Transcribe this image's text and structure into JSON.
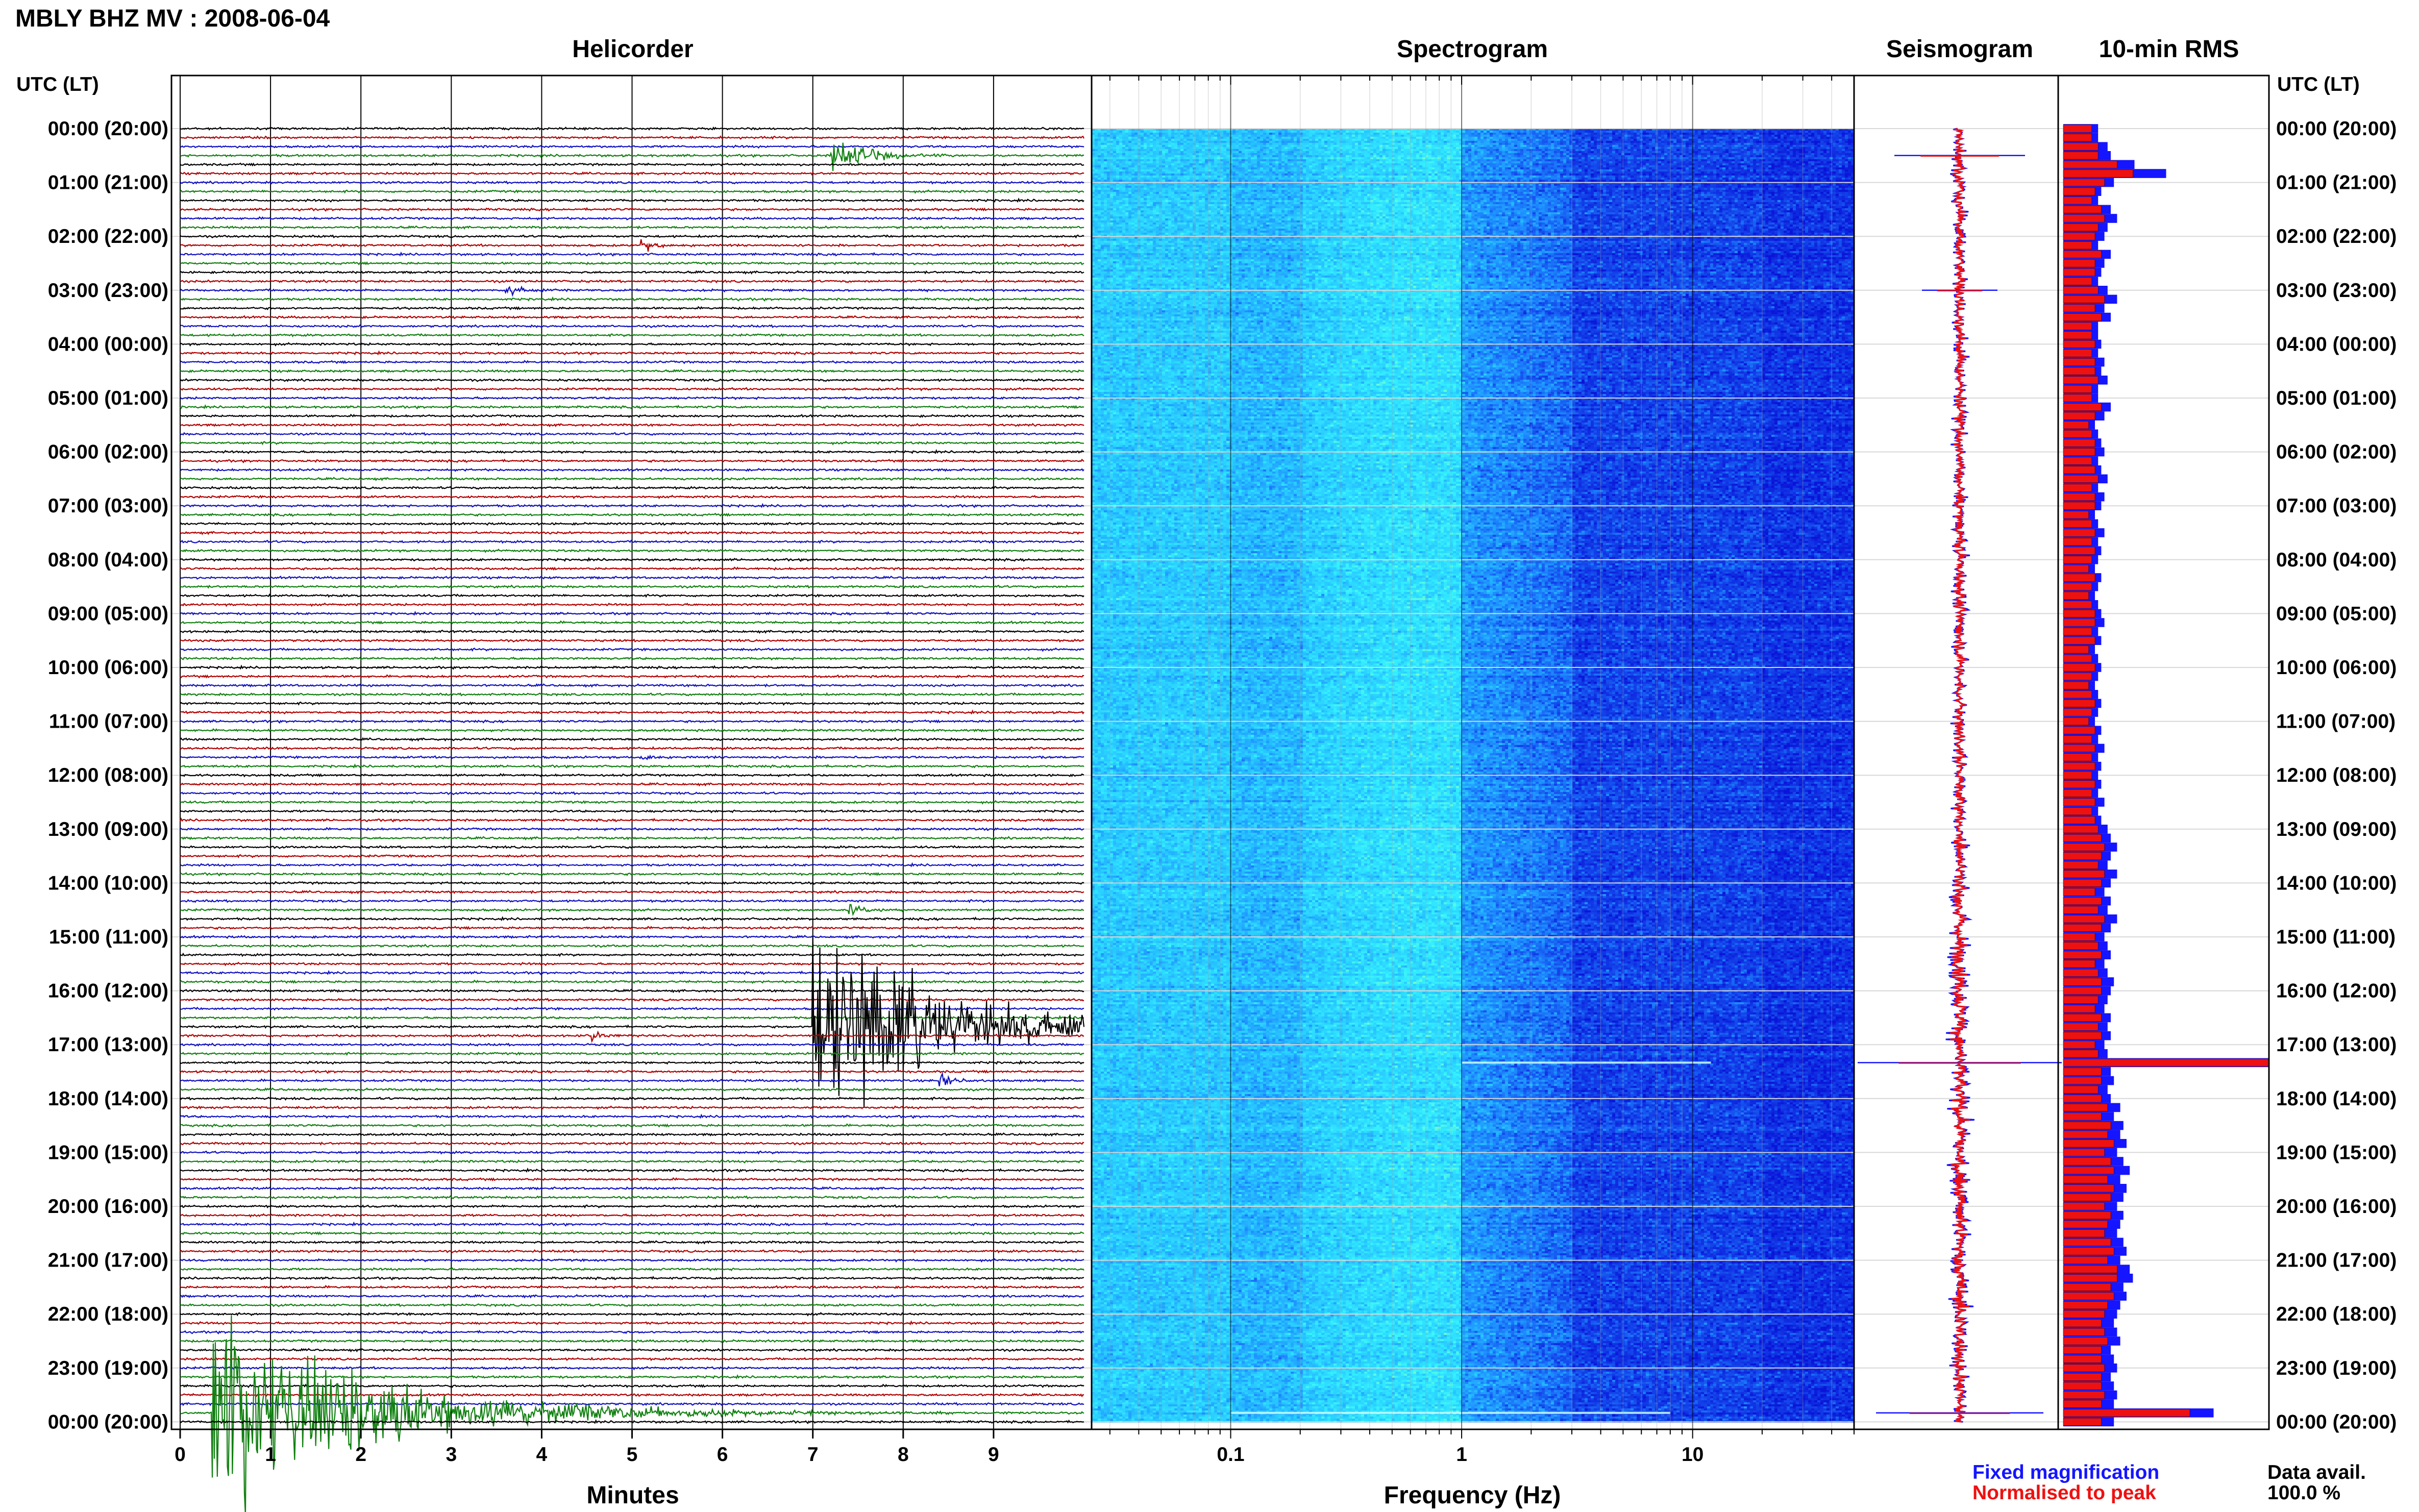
{
  "title": "MBLY BHZ MV : 2008-06-04",
  "colors": {
    "trace_cycle": [
      "#000000",
      "#b00000",
      "#1010c0",
      "#108010"
    ],
    "fixed_magnification": "#1515ff",
    "normalised_to_peak": "#ee1111",
    "spectrogram_dark": "#0a14d8",
    "spectrogram_mid": "#1e90ff",
    "spectrogram_light": "#34f0ff"
  },
  "chart_data": [
    {
      "type": "line",
      "name": "helicorder",
      "title": "Helicorder",
      "ylabel": "UTC (LT)",
      "xlabel": "Minutes",
      "x_ticks": [
        "0",
        "1",
        "2",
        "3",
        "4",
        "5",
        "6",
        "7",
        "8",
        "9"
      ],
      "xlim": [
        0,
        10
      ],
      "row_interval_minutes": 10,
      "rows": 145,
      "y_ticks": [
        "00:00 (20:00)",
        "01:00 (21:00)",
        "02:00 (22:00)",
        "03:00 (23:00)",
        "04:00 (00:00)",
        "05:00 (01:00)",
        "06:00 (02:00)",
        "07:00 (03:00)",
        "08:00 (04:00)",
        "09:00 (05:00)",
        "10:00 (06:00)",
        "11:00 (07:00)",
        "12:00 (08:00)",
        "13:00 (09:00)",
        "14:00 (10:00)",
        "15:00 (11:00)",
        "16:00 (12:00)",
        "17:00 (13:00)",
        "18:00 (14:00)",
        "19:00 (15:00)",
        "20:00 (16:00)",
        "21:00 (17:00)",
        "22:00 (18:00)",
        "23:00 (19:00)",
        "00:00 (20:00)"
      ],
      "events": [
        {
          "row": 3,
          "minute": 7.2,
          "amplitude": 1.6,
          "decay": 0.4
        },
        {
          "row": 13,
          "minute": 5.1,
          "amplitude": 0.7,
          "decay": 0.15
        },
        {
          "row": 18,
          "minute": 3.6,
          "amplitude": 0.8,
          "decay": 0.15
        },
        {
          "row": 70,
          "minute": 5.1,
          "amplitude": 0.4,
          "decay": 0.15
        },
        {
          "row": 87,
          "minute": 7.4,
          "amplitude": 0.6,
          "decay": 0.2
        },
        {
          "row": 100,
          "minute": 7.0,
          "amplitude": 10,
          "decay": 1.2
        },
        {
          "row": 101,
          "minute": 4.5,
          "amplitude": 0.6,
          "decay": 0.15
        },
        {
          "row": 106,
          "minute": 8.4,
          "amplitude": 0.8,
          "decay": 0.15
        },
        {
          "row": 143,
          "minute": 0.35,
          "amplitude": 9,
          "decay": 1.6
        }
      ]
    },
    {
      "type": "heatmap",
      "name": "spectrogram",
      "title": "Spectrogram",
      "xlabel": "Frequency (Hz)",
      "x_scale": "log",
      "xlim": [
        0.025,
        50
      ],
      "x_ticks": [
        "0.1",
        "1",
        "10"
      ],
      "peak_band_hz": [
        0.2,
        1.0
      ],
      "quiet_band_hz": [
        2,
        20
      ],
      "bright_lines": [
        {
          "row": 104,
          "from_hz": 1,
          "to_hz": 12
        },
        {
          "row": 143,
          "from_hz": 0.1,
          "to_hz": 8
        }
      ]
    },
    {
      "type": "line",
      "name": "seismogram",
      "title": "Seismogram",
      "spikes": [
        {
          "row": 3,
          "amplitude": 0.6
        },
        {
          "row": 18,
          "amplitude": 0.3
        },
        {
          "row": 104,
          "amplitude": 1.0
        },
        {
          "row": 143,
          "amplitude": 0.8
        }
      ]
    },
    {
      "type": "bar",
      "name": "10-min RMS",
      "title": "10-min RMS",
      "legend": [
        "Fixed magnification",
        "Normalised to peak"
      ],
      "rows": 145,
      "fixed_magnification_rel": [
        0.22,
        0.22,
        0.28,
        0.3,
        0.45,
        0.65,
        0.32,
        0.24,
        0.22,
        0.3,
        0.34,
        0.28,
        0.26,
        0.22,
        0.3,
        0.26,
        0.24,
        0.22,
        0.28,
        0.34,
        0.26,
        0.3,
        0.22,
        0.22,
        0.24,
        0.22,
        0.26,
        0.24,
        0.28,
        0.22,
        0.22,
        0.3,
        0.26,
        0.2,
        0.22,
        0.24,
        0.26,
        0.22,
        0.24,
        0.28,
        0.22,
        0.26,
        0.24,
        0.2,
        0.22,
        0.26,
        0.22,
        0.24,
        0.22,
        0.2,
        0.24,
        0.22,
        0.2,
        0.22,
        0.24,
        0.26,
        0.22,
        0.24,
        0.2,
        0.22,
        0.24,
        0.22,
        0.2,
        0.22,
        0.24,
        0.22,
        0.2,
        0.24,
        0.22,
        0.26,
        0.22,
        0.24,
        0.22,
        0.24,
        0.22,
        0.26,
        0.22,
        0.24,
        0.28,
        0.3,
        0.34,
        0.3,
        0.28,
        0.34,
        0.3,
        0.26,
        0.3,
        0.28,
        0.34,
        0.3,
        0.26,
        0.28,
        0.3,
        0.26,
        0.28,
        0.32,
        0.3,
        0.28,
        0.26,
        0.3,
        0.28,
        0.3,
        0.26,
        0.28,
        1.45,
        0.3,
        0.32,
        0.28,
        0.3,
        0.36,
        0.32,
        0.38,
        0.36,
        0.4,
        0.34,
        0.38,
        0.42,
        0.36,
        0.4,
        0.38,
        0.34,
        0.38,
        0.36,
        0.34,
        0.38,
        0.4,
        0.36,
        0.42,
        0.44,
        0.38,
        0.4,
        0.36,
        0.34,
        0.32,
        0.34,
        0.36,
        0.3,
        0.32,
        0.34,
        0.3,
        0.32,
        0.34,
        0.32,
        0.95,
        0.32
      ],
      "normalised_to_peak_rel": [
        0.18,
        0.18,
        0.22,
        0.22,
        0.34,
        0.44,
        0.26,
        0.2,
        0.18,
        0.24,
        0.26,
        0.22,
        0.2,
        0.18,
        0.24,
        0.2,
        0.2,
        0.18,
        0.22,
        0.26,
        0.2,
        0.24,
        0.18,
        0.18,
        0.2,
        0.18,
        0.2,
        0.2,
        0.22,
        0.18,
        0.18,
        0.24,
        0.2,
        0.16,
        0.18,
        0.2,
        0.2,
        0.18,
        0.2,
        0.22,
        0.18,
        0.2,
        0.2,
        0.16,
        0.18,
        0.2,
        0.18,
        0.2,
        0.18,
        0.16,
        0.2,
        0.18,
        0.16,
        0.18,
        0.2,
        0.2,
        0.18,
        0.2,
        0.16,
        0.18,
        0.2,
        0.18,
        0.16,
        0.18,
        0.2,
        0.18,
        0.16,
        0.2,
        0.18,
        0.2,
        0.18,
        0.2,
        0.18,
        0.2,
        0.18,
        0.2,
        0.18,
        0.2,
        0.22,
        0.24,
        0.26,
        0.24,
        0.22,
        0.26,
        0.24,
        0.2,
        0.24,
        0.22,
        0.26,
        0.24,
        0.2,
        0.22,
        0.24,
        0.2,
        0.22,
        0.24,
        0.24,
        0.22,
        0.2,
        0.24,
        0.22,
        0.24,
        0.2,
        0.22,
        1.45,
        0.24,
        0.24,
        0.22,
        0.24,
        0.28,
        0.24,
        0.3,
        0.28,
        0.32,
        0.26,
        0.3,
        0.32,
        0.28,
        0.32,
        0.3,
        0.26,
        0.3,
        0.28,
        0.26,
        0.3,
        0.32,
        0.28,
        0.34,
        0.34,
        0.3,
        0.32,
        0.28,
        0.26,
        0.24,
        0.26,
        0.28,
        0.24,
        0.24,
        0.26,
        0.24,
        0.24,
        0.26,
        0.24,
        0.8,
        0.24
      ]
    }
  ],
  "footer": {
    "fixed_label": "Fixed magnification",
    "normalised_label": "Normalised to peak",
    "data_avail_label": "Data avail.",
    "data_avail_value": "100.0 %"
  }
}
